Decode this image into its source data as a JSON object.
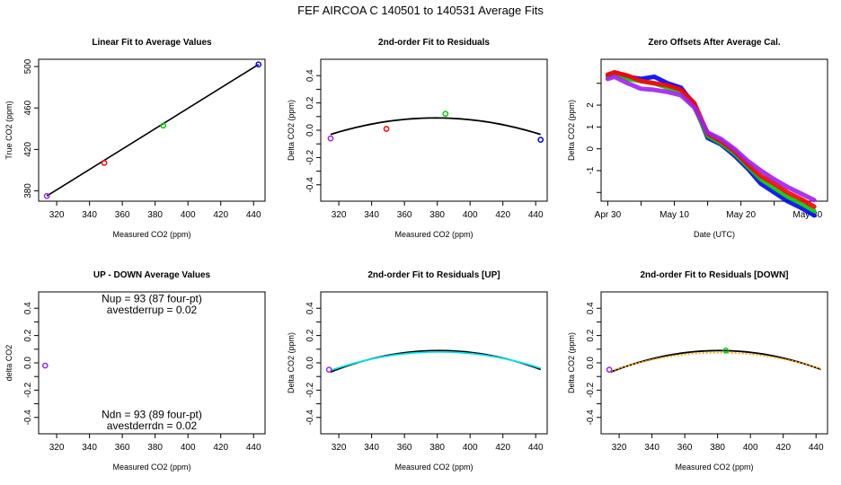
{
  "figure_title": "FEF   AIRCOA C   140501 to 140531   Average Fits",
  "chart_data": [
    {
      "id": "linear-fit",
      "type": "scatter",
      "title": "Linear Fit to Average Values",
      "xlabel": "Measured CO2 (ppm)",
      "ylabel": "True CO2 (ppm)",
      "xlim": [
        309,
        447
      ],
      "ylim": [
        370,
        507
      ],
      "xticks": [
        320,
        340,
        360,
        380,
        400,
        420,
        440
      ],
      "yticks": [
        380,
        420,
        460,
        500
      ],
      "points": [
        {
          "x": 314,
          "y": 375,
          "color": "#a020f0"
        },
        {
          "x": 349,
          "y": 407,
          "color": "#ff0000"
        },
        {
          "x": 385,
          "y": 443,
          "color": "#00cc00"
        },
        {
          "x": 443,
          "y": 502,
          "color": "#0000ff"
        }
      ],
      "lines": [
        {
          "x": [
            314,
            443
          ],
          "y": [
            375,
            502
          ],
          "color": "#000000"
        }
      ]
    },
    {
      "id": "residual-fit",
      "type": "scatter",
      "title": "2nd-order Fit to Residuals",
      "xlabel": "Measured CO2 (ppm)",
      "ylabel": "Delta CO2 (ppm)",
      "xlim": [
        309,
        447
      ],
      "ylim": [
        -0.52,
        0.52
      ],
      "xticks": [
        320,
        340,
        360,
        380,
        400,
        420,
        440
      ],
      "yticks": [
        -0.4,
        -0.3,
        -0.2,
        -0.1,
        0.0,
        0.1,
        0.2,
        0.3,
        0.4
      ],
      "ytick_labels": [
        "-0.4",
        "",
        "-0.2",
        "",
        "0.0",
        "",
        "0.2",
        "",
        "0.4"
      ],
      "points": [
        {
          "x": 315,
          "y": -0.06,
          "color": "#a020f0"
        },
        {
          "x": 349,
          "y": 0.01,
          "color": "#ff0000"
        },
        {
          "x": 385,
          "y": 0.12,
          "color": "#00cc00"
        },
        {
          "x": 443,
          "y": -0.07,
          "color": "#0000ff"
        }
      ],
      "curves": [
        {
          "x0": 315,
          "x1": 443,
          "a": -2.95e-05,
          "center": 379,
          "peak": 0.09,
          "color": "#000000"
        }
      ]
    },
    {
      "id": "zero-offsets",
      "type": "line",
      "title": "Zero Offsets After Average Cal.",
      "xlabel": "Date (UTC)",
      "ylabel": "Delta CO2 (ppm)",
      "xlim": [
        "2014-04-29",
        "2014-06-02"
      ],
      "ylim": [
        -2.4,
        4.1
      ],
      "xticks": [
        "2014-04-30",
        "2014-05-05",
        "2014-05-10",
        "2014-05-15",
        "2014-05-20",
        "2014-05-25",
        "2014-05-30"
      ],
      "xtick_labels": [
        "Apr 30",
        "",
        "May 10",
        "",
        "May 20",
        "",
        "May 30"
      ],
      "yticks": [
        -2,
        -1,
        0,
        1,
        2,
        3
      ],
      "ytick_labels": [
        "",
        "-1",
        "0",
        "1",
        "2",
        ""
      ],
      "series": [
        {
          "color": "#0000ff",
          "x": [
            "2014-04-30",
            "2014-05-01",
            "2014-05-03",
            "2014-05-05",
            "2014-05-07",
            "2014-05-09",
            "2014-05-11",
            "2014-05-13",
            "2014-05-15",
            "2014-05-17",
            "2014-05-19",
            "2014-05-21",
            "2014-05-23",
            "2014-05-25",
            "2014-05-27",
            "2014-05-29",
            "2014-05-31"
          ],
          "y": [
            3.35,
            3.5,
            3.3,
            3.2,
            3.3,
            3.0,
            2.8,
            2.0,
            0.5,
            0.2,
            -0.3,
            -0.9,
            -1.6,
            -2.0,
            -2.4,
            -2.7,
            -3.05
          ]
        },
        {
          "color": "#00cc00",
          "x": [
            "2014-04-30",
            "2014-05-01",
            "2014-05-03",
            "2014-05-05",
            "2014-05-07",
            "2014-05-09",
            "2014-05-11",
            "2014-05-13",
            "2014-05-15",
            "2014-05-17",
            "2014-05-19",
            "2014-05-21",
            "2014-05-23",
            "2014-05-25",
            "2014-05-27",
            "2014-05-29",
            "2014-05-31"
          ],
          "y": [
            3.3,
            3.45,
            3.2,
            3.1,
            3.0,
            2.8,
            2.6,
            1.9,
            0.6,
            0.25,
            -0.2,
            -0.8,
            -1.4,
            -1.8,
            -2.2,
            -2.5,
            -2.85
          ]
        },
        {
          "color": "#ff0000",
          "x": [
            "2014-04-30",
            "2014-05-01",
            "2014-05-03",
            "2014-05-05",
            "2014-05-07",
            "2014-05-09",
            "2014-05-11",
            "2014-05-13",
            "2014-05-15",
            "2014-05-17",
            "2014-05-19",
            "2014-05-21",
            "2014-05-23",
            "2014-05-25",
            "2014-05-27",
            "2014-05-29",
            "2014-05-31"
          ],
          "y": [
            3.4,
            3.5,
            3.35,
            3.1,
            3.0,
            2.9,
            2.7,
            2.1,
            0.7,
            0.35,
            -0.1,
            -0.7,
            -1.25,
            -1.6,
            -2.0,
            -2.3,
            -2.65
          ]
        },
        {
          "color": "#a020f0",
          "x": [
            "2014-04-30",
            "2014-05-01",
            "2014-05-03",
            "2014-05-05",
            "2014-05-07",
            "2014-05-09",
            "2014-05-11",
            "2014-05-13",
            "2014-05-15",
            "2014-05-17",
            "2014-05-19",
            "2014-05-21",
            "2014-05-23",
            "2014-05-25",
            "2014-05-27",
            "2014-05-29",
            "2014-05-31"
          ],
          "y": [
            3.2,
            3.3,
            3.0,
            2.75,
            2.7,
            2.6,
            2.45,
            1.9,
            0.75,
            0.45,
            0.0,
            -0.55,
            -1.0,
            -1.4,
            -1.75,
            -2.05,
            -2.35
          ]
        }
      ]
    },
    {
      "id": "up-down-averages",
      "type": "scatter",
      "title": "UP - DOWN Average Values",
      "xlabel": "Measured CO2 (ppm)",
      "ylabel": "delta CO2",
      "xlim": [
        309,
        447
      ],
      "ylim": [
        -0.52,
        0.52
      ],
      "xticks": [
        320,
        340,
        360,
        380,
        400,
        420,
        440
      ],
      "yticks": [
        -0.4,
        -0.3,
        -0.2,
        -0.1,
        0.0,
        0.1,
        0.2,
        0.3,
        0.4
      ],
      "ytick_labels": [
        "-0.4",
        "",
        "-0.2",
        "",
        "0.0",
        "",
        "0.2",
        "",
        "0.4"
      ],
      "points": [
        {
          "x": 313,
          "y": -0.02,
          "color": "#a020f0"
        }
      ],
      "annotations": [
        {
          "text": "Nup = 93 (87 four-pt)",
          "x": 378,
          "y": 0.47
        },
        {
          "text": "avestderrup =  0.02",
          "x": 378,
          "y": 0.39
        },
        {
          "text": "Ndn = 93 (89 four-pt)",
          "x": 378,
          "y": -0.38
        },
        {
          "text": "avestderrdn =  0.02",
          "x": 378,
          "y": -0.46
        }
      ]
    },
    {
      "id": "residual-fit-up",
      "type": "scatter",
      "title": "2nd-order Fit to Residuals [UP]",
      "xlabel": "Measured CO2 (ppm)",
      "ylabel": "Delta CO2 (ppm)",
      "xlim": [
        309,
        447
      ],
      "ylim": [
        -0.52,
        0.52
      ],
      "xticks": [
        320,
        340,
        360,
        380,
        400,
        420,
        440
      ],
      "yticks": [
        -0.4,
        -0.3,
        -0.2,
        -0.1,
        0.0,
        0.1,
        0.2,
        0.3,
        0.4
      ],
      "ytick_labels": [
        "-0.4",
        "",
        "-0.2",
        "",
        "0.0",
        "",
        "0.2",
        "",
        "0.4"
      ],
      "points": [
        {
          "x": 314,
          "y": -0.05,
          "color": "#a020f0"
        }
      ],
      "curves": [
        {
          "x0": 315,
          "x1": 443,
          "a": -3.6e-05,
          "center": 381,
          "peak": 0.09,
          "color": "#000000"
        },
        {
          "x0": 315,
          "x1": 443,
          "a": -3.1e-05,
          "center": 381,
          "peak": 0.08,
          "color": "#00e5ee"
        }
      ]
    },
    {
      "id": "residual-fit-down",
      "type": "scatter",
      "title": "2nd-order Fit to Residuals [DOWN]",
      "xlabel": "Measured CO2 (ppm)",
      "ylabel": "Delta CO2 (ppm)",
      "xlim": [
        309,
        447
      ],
      "ylim": [
        -0.52,
        0.52
      ],
      "xticks": [
        320,
        340,
        360,
        380,
        400,
        420,
        440
      ],
      "yticks": [
        -0.4,
        -0.3,
        -0.2,
        -0.1,
        0.0,
        0.1,
        0.2,
        0.3,
        0.4
      ],
      "ytick_labels": [
        "-0.4",
        "",
        "-0.2",
        "",
        "0.0",
        "",
        "0.2",
        "",
        "0.4"
      ],
      "points": [
        {
          "x": 314,
          "y": -0.05,
          "color": "#a020f0"
        },
        {
          "x": 385,
          "y": 0.09,
          "color": "#00cc00"
        }
      ],
      "curves": [
        {
          "x0": 315,
          "x1": 443,
          "a": -3.6e-05,
          "center": 381,
          "peak": 0.09,
          "color": "#000000"
        },
        {
          "x0": 315,
          "x1": 443,
          "a": -3.1e-05,
          "center": 381,
          "peak": 0.075,
          "color": "#ffa500",
          "dashed": true
        }
      ]
    }
  ]
}
